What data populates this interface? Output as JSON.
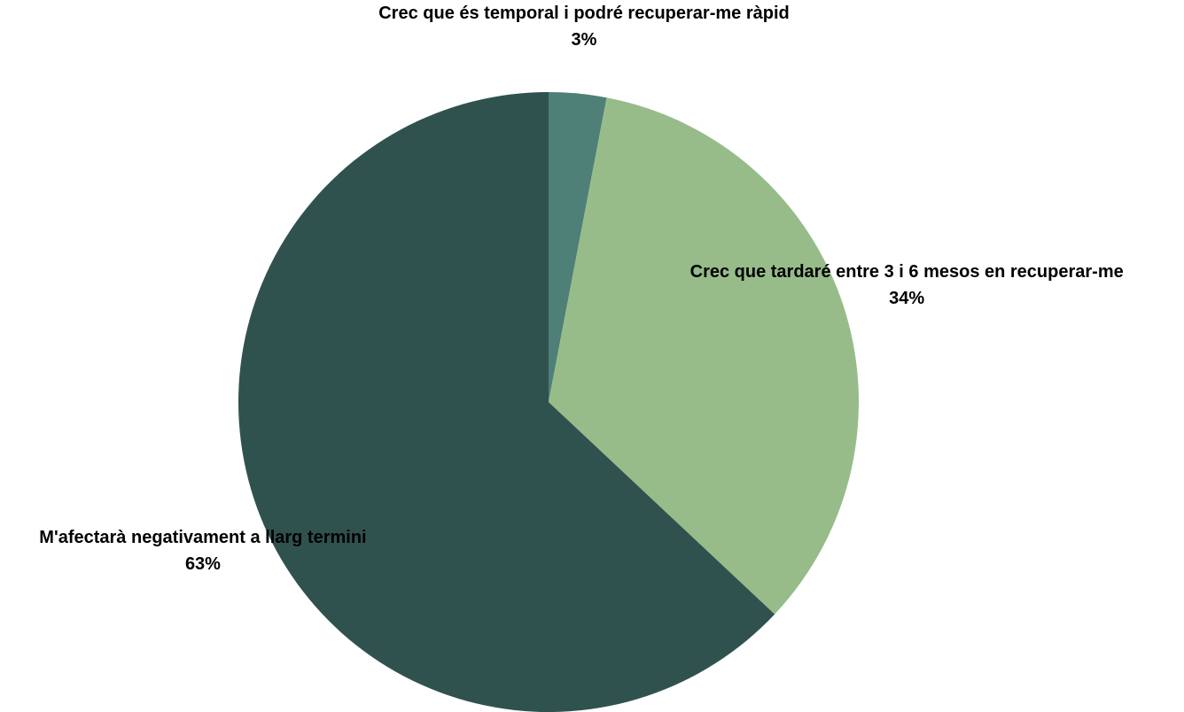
{
  "chart_data": {
    "type": "pie",
    "categories": [
      "Crec que és temporal i podré recuperar-me ràpid",
      "Crec que tardaré entre 3 i 6 mesos en recuperar-me",
      "M'afectarà negativament a llarg termini"
    ],
    "values": [
      3,
      34,
      63
    ],
    "value_labels": [
      "3%",
      "34%",
      "63%"
    ],
    "colors": [
      "#4e8077",
      "#97bc8a",
      "#30524f"
    ]
  }
}
